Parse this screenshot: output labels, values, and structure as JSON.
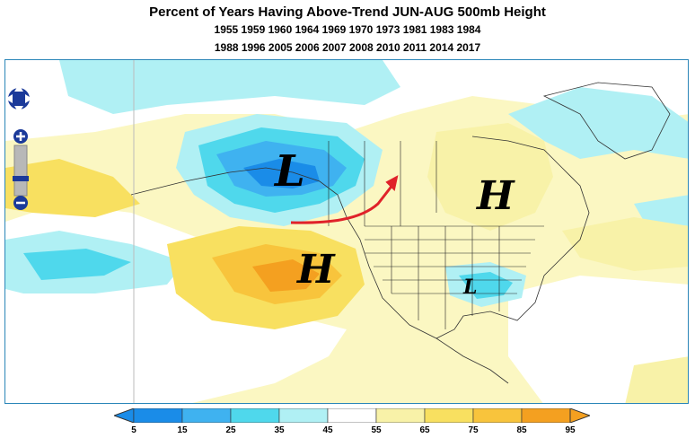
{
  "title": {
    "main": "Percent of Years Having Above-Trend JUN-AUG 500mb Height",
    "years_line1": "1955 1959 1960 1964 1969 1970 1973 1981 1983 1984",
    "years_line2": "1988 1996 2005 2006 2007 2008 2010 2011 2014 2017"
  },
  "map": {
    "labels": {
      "low_alaska": "L",
      "high_canada": "H",
      "high_pacific": "H",
      "low_southeast": "L"
    },
    "arrow_color": "#e0222a"
  },
  "nav": {
    "pan_icon": "pan-arrows-icon",
    "zoom_in_icon": "zoom-in-icon",
    "zoom_out_icon": "zoom-out-icon"
  },
  "legend": {
    "ticks": [
      "5",
      "15",
      "25",
      "35",
      "45",
      "55",
      "65",
      "75",
      "85",
      "95"
    ],
    "colors": [
      "#1a8ce8",
      "#3fb2f0",
      "#4fd8ec",
      "#b0f0f4",
      "#ffffff",
      "#f8f2a8",
      "#f8e060",
      "#f8c43c",
      "#f4a020"
    ]
  }
}
